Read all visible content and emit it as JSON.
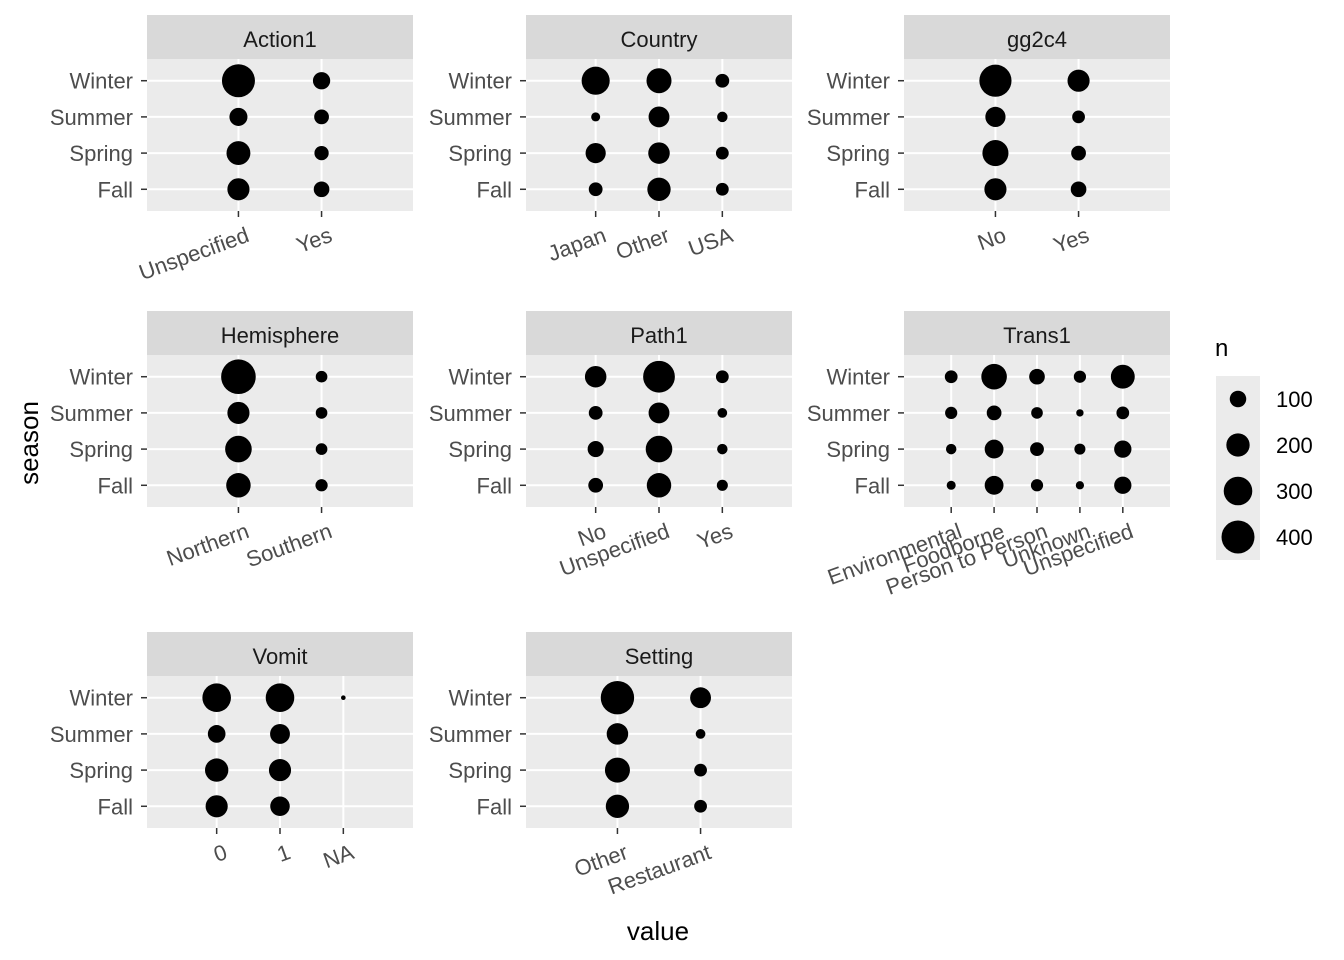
{
  "chart_data": {
    "type": "scatter",
    "xlabel": "value",
    "ylabel": "season",
    "seasons": [
      "Fall",
      "Spring",
      "Summer",
      "Winter"
    ],
    "size_legend": {
      "title": "n",
      "breaks": [
        100,
        200,
        300,
        400
      ],
      "labels": [
        "100",
        "200",
        "300",
        "400"
      ]
    },
    "colors": {
      "point": "#000000",
      "panel": "#ebebeb",
      "strip": "#d9d9d9",
      "grid": "#ffffff"
    },
    "panels": [
      {
        "name": "Action1",
        "categories": [
          "Unspecified",
          "Yes"
        ],
        "n": {
          "Winter": [
            400,
            110
          ],
          "Summer": [
            120,
            80
          ],
          "Spring": [
            210,
            75
          ],
          "Fall": [
            180,
            90
          ]
        }
      },
      {
        "name": "Country",
        "categories": [
          "Japan",
          "Other",
          "USA"
        ],
        "n": {
          "Winter": [
            290,
            230,
            70
          ],
          "Summer": [
            30,
            160,
            40
          ],
          "Spring": [
            150,
            170,
            60
          ],
          "Fall": [
            70,
            200,
            60
          ]
        }
      },
      {
        "name": "gg2c4",
        "categories": [
          "No",
          "Yes"
        ],
        "n": {
          "Winter": [
            380,
            180
          ],
          "Summer": [
            150,
            60
          ],
          "Spring": [
            250,
            80
          ],
          "Fall": [
            180,
            90
          ]
        }
      },
      {
        "name": "Hemisphere",
        "categories": [
          "Northern",
          "Southern"
        ],
        "n": {
          "Winter": [
            440,
            50
          ],
          "Summer": [
            180,
            50
          ],
          "Spring": [
            260,
            50
          ],
          "Fall": [
            220,
            55
          ]
        }
      },
      {
        "name": "Path1",
        "categories": [
          "No",
          "Unspecified",
          "Yes"
        ],
        "n": {
          "Winter": [
            170,
            370,
            60
          ],
          "Summer": [
            70,
            160,
            35
          ],
          "Spring": [
            95,
            260,
            40
          ],
          "Fall": [
            80,
            220,
            45
          ]
        }
      },
      {
        "name": "Trans1",
        "categories": [
          "Environmental",
          "Foodborne",
          "Person to Person",
          "Unknown",
          "Unspecified"
        ],
        "n": {
          "Winter": [
            60,
            240,
            90,
            55,
            210
          ],
          "Summer": [
            55,
            80,
            50,
            20,
            60
          ],
          "Spring": [
            40,
            130,
            70,
            45,
            110
          ],
          "Fall": [
            30,
            130,
            55,
            25,
            110
          ]
        }
      },
      {
        "name": "Vomit",
        "categories": [
          "0",
          "1",
          "NA"
        ],
        "n": {
          "Winter": [
            300,
            300,
            8
          ],
          "Summer": [
            115,
            145,
            0
          ],
          "Spring": [
            200,
            180,
            0
          ],
          "Fall": [
            180,
            140,
            0
          ]
        }
      },
      {
        "name": "Setting",
        "categories": [
          "Other",
          "Restaurant"
        ],
        "n": {
          "Winter": [
            410,
            160
          ],
          "Summer": [
            170,
            35
          ],
          "Spring": [
            230,
            60
          ],
          "Fall": [
            200,
            60
          ]
        }
      }
    ]
  }
}
